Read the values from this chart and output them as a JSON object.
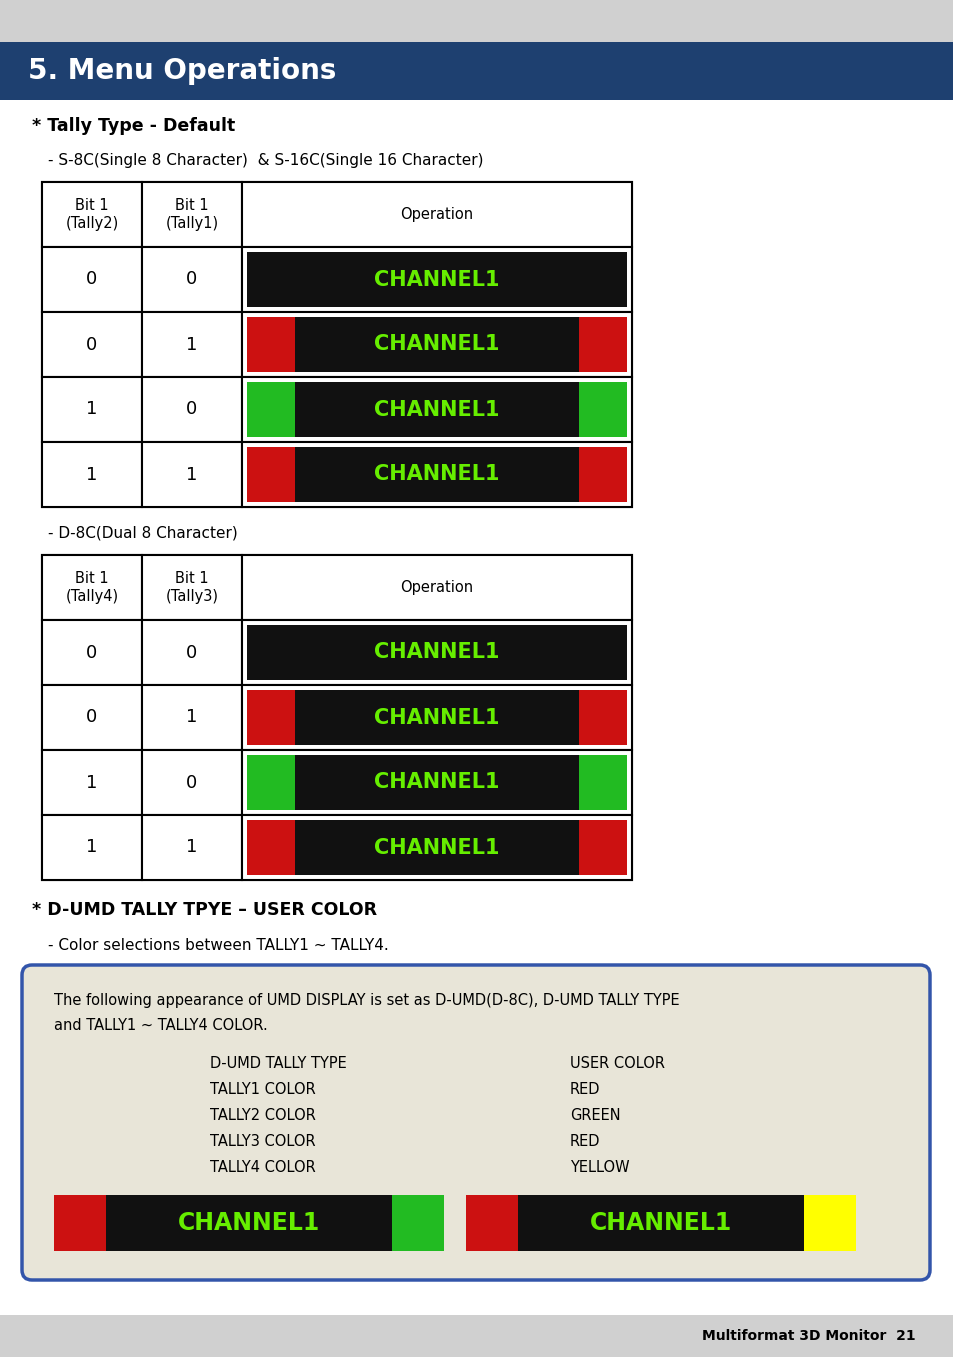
{
  "page_bg": "#ffffff",
  "header_bg": "#1e4070",
  "header_text": "5. Menu Operations",
  "header_text_color": "#ffffff",
  "top_strip_bg": "#d0d0d0",
  "bottom_strip_bg": "#d0d0d0",
  "section1_title": "* Tally Type - Default",
  "section1_subtitle": "- S-8C(Single 8 Character)  & S-16C(Single 16 Character)",
  "table1_col1_header": "Bit 1\n(Tally2)",
  "table1_col2_header": "Bit 1\n(Tally1)",
  "table1_col3_header": "Operation",
  "table1_rows": [
    {
      "c1": "0",
      "c2": "0",
      "type": "black_only"
    },
    {
      "c1": "0",
      "c2": "1",
      "type": "red_sides"
    },
    {
      "c1": "1",
      "c2": "0",
      "type": "green_sides"
    },
    {
      "c1": "1",
      "c2": "1",
      "type": "red_sides"
    }
  ],
  "section2_subtitle": "- D-8C(Dual 8 Character)",
  "table2_col1_header": "Bit 1\n(Tally4)",
  "table2_col2_header": "Bit 1\n(Tally3)",
  "table2_col3_header": "Operation",
  "table2_rows": [
    {
      "c1": "0",
      "c2": "0",
      "type": "black_only"
    },
    {
      "c1": "0",
      "c2": "1",
      "type": "red_sides"
    },
    {
      "c1": "1",
      "c2": "0",
      "type": "green_sides"
    },
    {
      "c1": "1",
      "c2": "1",
      "type": "red_sides"
    }
  ],
  "section3_title": "* D-UMD TALLY TPYE – USER COLOR",
  "section3_subtitle": "- Color selections between TALLY1 ~ TALLY4.",
  "box_text_line1": "The following appearance of UMD DISPLAY is set as D-UMD(D-8C), D-UMD TALLY TYPE",
  "box_text_line2": "and TALLY1 ~ TALLY4 COLOR.",
  "box_labels_left": [
    "D-UMD TALLY TYPE",
    "TALLY1 COLOR",
    "TALLY2 COLOR",
    "TALLY3 COLOR",
    "TALLY4 COLOR"
  ],
  "box_labels_right": [
    "USER COLOR",
    "RED",
    "GREEN",
    "RED",
    "YELLOW"
  ],
  "channel_label": "CHANNEL1",
  "green_text": "#66ee00",
  "red_color": "#cc1111",
  "green_color": "#22bb22",
  "yellow_color": "#ffff00",
  "black_color": "#111111",
  "footer_text": "Multiformat 3D Monitor  21"
}
